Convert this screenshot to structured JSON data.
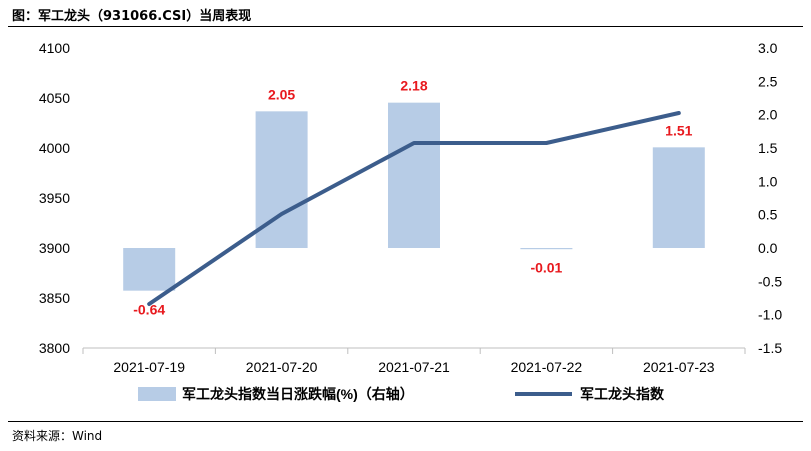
{
  "header": {
    "title": "图：军工龙头（931066.CSI）当周表现"
  },
  "footer": {
    "source": "资料来源：Wind"
  },
  "colors": {
    "bar": "#b7cce6",
    "line": "#3c5d8c",
    "label": "#e8191e",
    "axis": "#bfbfbf"
  },
  "chart_data": {
    "type": "bar",
    "title": "",
    "categories": [
      "2021-07-19",
      "2021-07-20",
      "2021-07-21",
      "2021-07-22",
      "2021-07-23"
    ],
    "series": [
      {
        "name": "军工龙头指数当日涨跌幅(%)（右轴）",
        "type": "bar",
        "axis": "right",
        "values": [
          -0.64,
          2.05,
          2.18,
          -0.01,
          1.51
        ],
        "data_labels": [
          "-0.64",
          "2.05",
          "2.18",
          "-0.01",
          "1.51"
        ]
      },
      {
        "name": "军工龙头指数",
        "type": "line",
        "axis": "left",
        "values": [
          3844,
          3934,
          4005,
          4005,
          4035
        ]
      }
    ],
    "y_left": {
      "min": 3800,
      "max": 4100,
      "ticks": [
        "3800",
        "3850",
        "3900",
        "3950",
        "4000",
        "4050",
        "4100"
      ]
    },
    "y_right": {
      "min": -1.5,
      "max": 3.0,
      "ticks": [
        "-1.5",
        "-1.0",
        "-0.5",
        "0.0",
        "0.5",
        "1.0",
        "1.5",
        "2.0",
        "2.5",
        "3.0"
      ]
    },
    "legend_position": "bottom",
    "grid": false
  }
}
